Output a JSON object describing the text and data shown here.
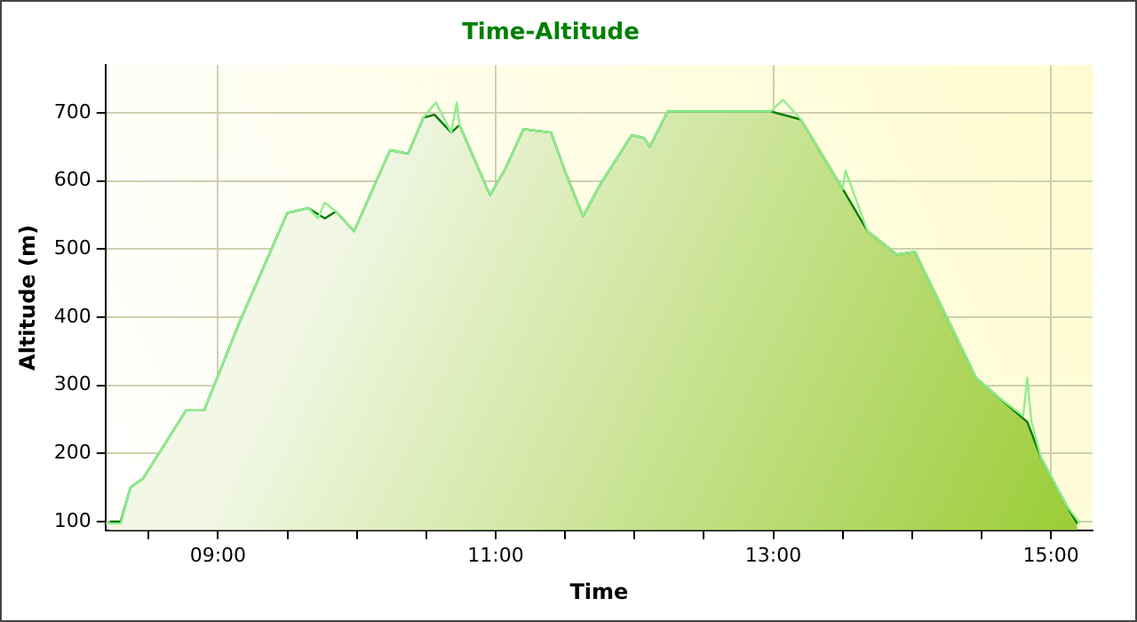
{
  "chart_data": {
    "type": "area",
    "title": "Time-Altitude",
    "xlabel": "Time",
    "ylabel": "Altitude (m)",
    "xlim": [
      8.19,
      15.3
    ],
    "xticks": [
      {
        "value": 8.5,
        "label": null
      },
      {
        "value": 9,
        "label": "09:00"
      },
      {
        "value": 9.5,
        "label": null
      },
      {
        "value": 10,
        "label": null
      },
      {
        "value": 10.5,
        "label": null
      },
      {
        "value": 11,
        "label": "11:00"
      },
      {
        "value": 11.5,
        "label": null
      },
      {
        "value": 12,
        "label": null
      },
      {
        "value": 12.5,
        "label": null
      },
      {
        "value": 13,
        "label": "13:00"
      },
      {
        "value": 13.5,
        "label": null
      },
      {
        "value": 14,
        "label": null
      },
      {
        "value": 14.5,
        "label": null
      },
      {
        "value": 15,
        "label": "15:00"
      }
    ],
    "ylim": [
      87,
      770
    ],
    "yticks": [
      100,
      200,
      300,
      400,
      500,
      600,
      700
    ],
    "grid": true,
    "legend": false,
    "marker": "none",
    "line_style": "solid",
    "series": [
      {
        "type": "line",
        "color": "#90ee90",
        "x": [
          8.19,
          8.3,
          8.37,
          8.46,
          8.77,
          8.9,
          9.16,
          9.5,
          9.65,
          9.72,
          9.77,
          9.85,
          9.98,
          10.24,
          10.37,
          10.48,
          10.57,
          10.68,
          10.72,
          10.74,
          10.96,
          11.07,
          11.2,
          11.4,
          11.5,
          11.63,
          11.76,
          11.98,
          12.07,
          12.11,
          12.24,
          12.6,
          12.98,
          13.07,
          13.2,
          13.5,
          13.52,
          13.68,
          13.89,
          14.02,
          14.28,
          14.46,
          14.63,
          14.8,
          14.83,
          14.86,
          14.93,
          15.11,
          15.21
        ],
        "values": [
          97,
          97,
          150,
          163,
          263,
          263,
          395,
          553,
          560,
          545,
          568,
          555,
          526,
          645,
          640,
          693,
          715,
          671,
          715,
          682,
          579,
          618,
          676,
          671,
          614,
          548,
          597,
          667,
          663,
          650,
          702,
          702,
          702,
          719,
          690,
          588,
          615,
          526,
          492,
          496,
          387,
          311,
          281,
          255,
          311,
          246,
          193,
          124,
          97
        ]
      },
      {
        "color": "#007a00",
        "x": [
          8.22,
          8.3,
          8.37,
          8.46,
          8.77,
          8.9,
          9.16,
          9.5,
          9.65,
          9.77,
          9.85,
          9.98,
          10.24,
          10.37,
          10.48,
          10.56,
          10.68,
          10.74,
          10.96,
          11.07,
          11.2,
          11.4,
          11.5,
          11.63,
          11.76,
          11.98,
          12.07,
          12.11,
          12.24,
          12.98,
          13.2,
          13.5,
          13.68,
          13.89,
          14.02,
          14.28,
          14.46,
          14.63,
          14.83,
          14.93,
          15.11,
          15.19
        ],
        "values": [
          100,
          100,
          150,
          163,
          263,
          263,
          395,
          553,
          560,
          545,
          555,
          526,
          645,
          640,
          693,
          697,
          671,
          682,
          579,
          618,
          676,
          671,
          614,
          548,
          597,
          667,
          663,
          650,
          702,
          702,
          690,
          588,
          526,
          492,
          496,
          387,
          311,
          281,
          246,
          193,
          124,
          97
        ]
      }
    ]
  }
}
